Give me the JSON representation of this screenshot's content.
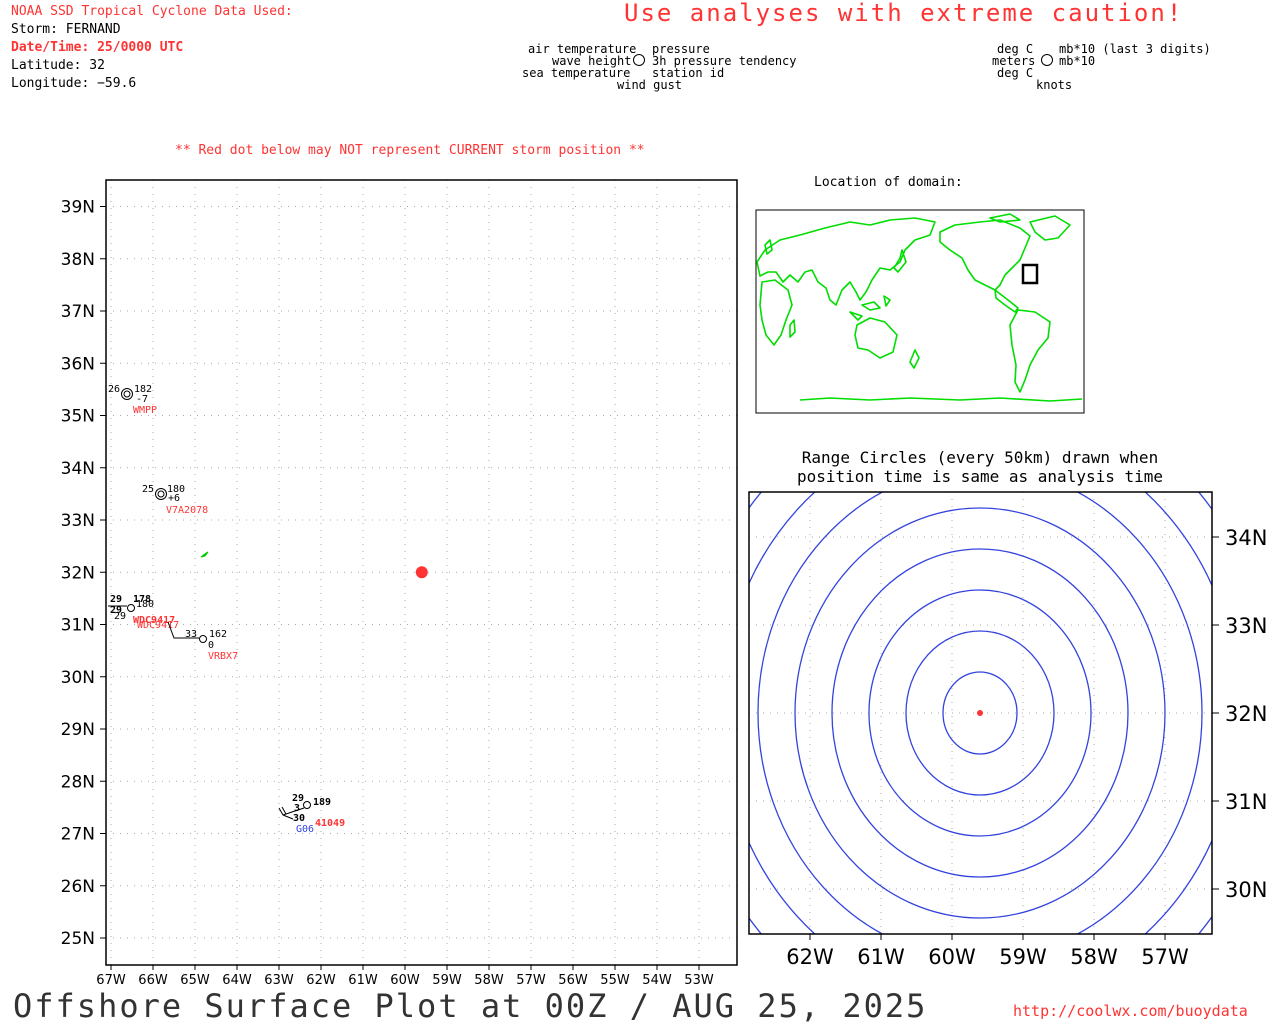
{
  "header": {
    "source": "NOAA SSD Tropical Cyclone Data Used:",
    "storm": "Storm: FERNAND",
    "datetime": "Date/Time: 25/0000 UTC",
    "latitude": "Latitude: 32",
    "longitude": "Longitude: −59.6"
  },
  "caution": "Use analyses with extreme caution!",
  "legend": {
    "left": [
      "air temperature",
      "wave height",
      "sea temperature"
    ],
    "right": [
      "pressure",
      "3h pressure tendency",
      "station id"
    ],
    "bottom": "wind gust",
    "units_left": [
      "deg C",
      "meters",
      "deg C"
    ],
    "units_right": [
      "mb*10 (last 3 digits)",
      "mb*10"
    ],
    "units_bottom": "knots"
  },
  "warning": "** Red dot below may NOT represent CURRENT storm position **",
  "main_map": {
    "lat_labels": [
      "25N",
      "26N",
      "27N",
      "28N",
      "29N",
      "30N",
      "31N",
      "32N",
      "33N",
      "34N",
      "35N",
      "36N",
      "37N",
      "38N",
      "39N"
    ],
    "lon_labels": [
      "67W",
      "66W",
      "65W",
      "64W",
      "63W",
      "62W",
      "61W",
      "60W",
      "59W",
      "58W",
      "57W",
      "56W",
      "55W",
      "54W",
      "53W"
    ],
    "storm_position": {
      "lat": 32.0,
      "lon": -59.6,
      "color": "#ff3333"
    },
    "stations": [
      {
        "id": "WMPP",
        "air": "26",
        "pressure": "182",
        "tendency": "-7"
      },
      {
        "id": "V7A2078",
        "air": "25",
        "pressure": "180",
        "tendency": "+6"
      },
      {
        "id": "WDC9417",
        "air": "29",
        "pressure": "178",
        "extra": [
          "29",
          "180",
          "29"
        ]
      },
      {
        "id": "VRBX7",
        "air": "33",
        "pressure": "162",
        "tendency": "0"
      },
      {
        "id": "41049",
        "air": "29",
        "pressure": "189",
        "wave": "3",
        "sea": "30",
        "extra_id": "G06"
      }
    ]
  },
  "inset_locator": {
    "title": "Location of domain:",
    "land_color": "#00dd00"
  },
  "range_panel": {
    "title_line1": "Range Circles (every 50km) drawn when",
    "title_line2": "position time is same as analysis time",
    "lat_labels": [
      "30N",
      "31N",
      "32N",
      "33N",
      "34N"
    ],
    "lon_labels": [
      "62W",
      "61W",
      "60W",
      "59W",
      "58W",
      "57W"
    ],
    "circle_color": "#3344dd"
  },
  "footer": {
    "title": "Offshore Surface Plot at 00Z / AUG 25, 2025",
    "url": "http://coolwx.com/buoydata"
  }
}
